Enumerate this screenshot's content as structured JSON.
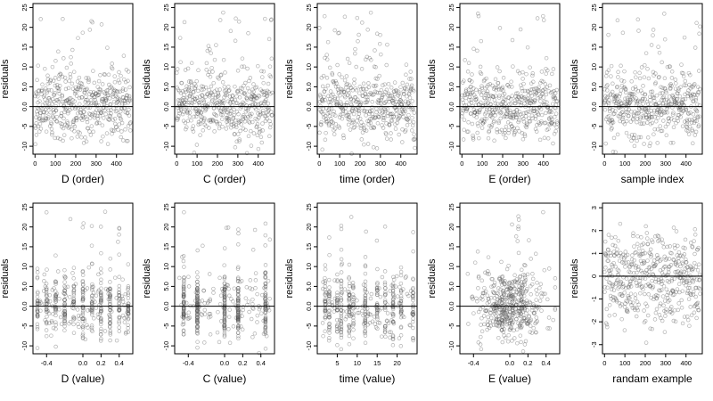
{
  "figure": {
    "rows": 2,
    "cols": 5
  },
  "chart_data": [
    {
      "type": "scatter",
      "xlabel": "D (order)",
      "ylabel": "residuals",
      "xlim": [
        -10,
        480
      ],
      "ylim": [
        -12,
        26
      ],
      "xticks": [
        0,
        100,
        200,
        300,
        400
      ],
      "xtick_labels": [
        "0",
        "100",
        "200",
        "300",
        "400"
      ],
      "yticks": [
        -10,
        -5,
        0,
        5,
        10,
        15,
        20,
        25
      ],
      "ytick_labels": [
        "-10",
        "-5",
        "0.0",
        "5.0",
        "10",
        "15",
        "20",
        "25"
      ],
      "hline": 0,
      "gen": {
        "kind": "order",
        "n": 470,
        "sd": 4.3,
        "seed": 11
      }
    },
    {
      "type": "scatter",
      "xlabel": "C (order)",
      "ylabel": "residuals",
      "xlim": [
        -10,
        480
      ],
      "ylim": [
        -12,
        26
      ],
      "xticks": [
        0,
        100,
        200,
        300,
        400
      ],
      "xtick_labels": [
        "0",
        "100",
        "200",
        "300",
        "400"
      ],
      "yticks": [
        -10,
        -5,
        0,
        5,
        10,
        15,
        20,
        25
      ],
      "ytick_labels": [
        "-10",
        "-5",
        "0.0",
        "5.0",
        "10",
        "15",
        "20",
        "25"
      ],
      "hline": 0,
      "gen": {
        "kind": "order",
        "n": 470,
        "sd": 4.3,
        "seed": 23
      }
    },
    {
      "type": "scatter",
      "xlabel": "time (order)",
      "ylabel": "residuals",
      "xlim": [
        -10,
        480
      ],
      "ylim": [
        -12,
        26
      ],
      "xticks": [
        0,
        100,
        200,
        300,
        400
      ],
      "xtick_labels": [
        "0",
        "100",
        "200",
        "300",
        "400"
      ],
      "yticks": [
        -10,
        -5,
        0,
        5,
        10,
        15,
        20,
        25
      ],
      "ytick_labels": [
        "-10",
        "-5",
        "0.0",
        "5.0",
        "10",
        "15",
        "20",
        "25"
      ],
      "hline": 0,
      "gen": {
        "kind": "order",
        "n": 470,
        "sd": 4.3,
        "seed": 37
      }
    },
    {
      "type": "scatter",
      "xlabel": "E (order)",
      "ylabel": "residuals",
      "xlim": [
        -10,
        480
      ],
      "ylim": [
        -12,
        26
      ],
      "xticks": [
        0,
        100,
        200,
        300,
        400
      ],
      "xtick_labels": [
        "0",
        "100",
        "200",
        "300",
        "400"
      ],
      "yticks": [
        -10,
        -5,
        0,
        5,
        10,
        15,
        20,
        25
      ],
      "ytick_labels": [
        "-10",
        "-5",
        "0.0",
        "5.0",
        "10",
        "15",
        "20",
        "25"
      ],
      "hline": 0,
      "gen": {
        "kind": "order",
        "n": 470,
        "sd": 4.3,
        "seed": 41
      }
    },
    {
      "type": "scatter",
      "xlabel": "sample index",
      "ylabel": "residuals",
      "xlim": [
        -10,
        480
      ],
      "ylim": [
        -12,
        26
      ],
      "xticks": [
        0,
        100,
        200,
        300,
        400
      ],
      "xtick_labels": [
        "0",
        "100",
        "200",
        "300",
        "400"
      ],
      "yticks": [
        -10,
        -5,
        0,
        5,
        10,
        15,
        20,
        25
      ],
      "ytick_labels": [
        "-10",
        "-5",
        "0.0",
        "5.0",
        "10",
        "15",
        "20",
        "25"
      ],
      "hline": 0,
      "gen": {
        "kind": "order",
        "n": 470,
        "sd": 4.3,
        "seed": 53
      }
    },
    {
      "type": "scatter",
      "xlabel": "D (value)",
      "ylabel": "residuals",
      "xlim": [
        -0.55,
        0.55
      ],
      "ylim": [
        -12,
        26
      ],
      "xticks": [
        -0.4,
        0.0,
        0.2,
        0.4
      ],
      "xtick_labels": [
        "-0.4",
        "0.0",
        "0.2",
        "0.4"
      ],
      "yticks": [
        -10,
        -5,
        0,
        5,
        10,
        15,
        20,
        25
      ],
      "ytick_labels": [
        "-10",
        "-5",
        "0.0",
        "5.0",
        "10",
        "15",
        "20",
        "25"
      ],
      "hline": 0,
      "gen": {
        "kind": "value",
        "n": 470,
        "sd": 4.3,
        "seed": 61,
        "xmin": -0.5,
        "xmax": 0.5,
        "levels": [
          -0.5,
          -0.4,
          -0.3,
          -0.2,
          -0.1,
          0.0,
          0.1,
          0.2,
          0.3,
          0.4,
          0.5
        ]
      }
    },
    {
      "type": "scatter",
      "xlabel": "C (value)",
      "ylabel": "residuals",
      "xlim": [
        -0.55,
        0.55
      ],
      "ylim": [
        -12,
        26
      ],
      "xticks": [
        -0.4,
        0.0,
        0.2,
        0.4
      ],
      "xtick_labels": [
        "-0.4",
        "0.0",
        "0.2",
        "0.4"
      ],
      "yticks": [
        -10,
        -5,
        0,
        5,
        10,
        15,
        20,
        25
      ],
      "ytick_labels": [
        "-10",
        "-5",
        "0.0",
        "5.0",
        "10",
        "15",
        "20",
        "25"
      ],
      "hline": 0,
      "gen": {
        "kind": "value",
        "n": 470,
        "sd": 4.3,
        "seed": 71,
        "xmin": -0.5,
        "xmax": 0.5,
        "levels": [
          -0.45,
          -0.3,
          0.0,
          0.15,
          0.45
        ]
      }
    },
    {
      "type": "scatter",
      "xlabel": "time (value)",
      "ylabel": "residuals",
      "xlim": [
        0,
        25
      ],
      "ylim": [
        -12,
        26
      ],
      "xticks": [
        5,
        10,
        15,
        20
      ],
      "xtick_labels": [
        "5",
        "10",
        "15",
        "20"
      ],
      "yticks": [
        -10,
        -5,
        0,
        5,
        10,
        15,
        20,
        25
      ],
      "ytick_labels": [
        "-10",
        "-5",
        "0.0",
        "5.0",
        "10",
        "15",
        "20",
        "25"
      ],
      "hline": 0,
      "gen": {
        "kind": "value",
        "n": 470,
        "sd": 4.3,
        "seed": 83,
        "xmin": 1,
        "xmax": 24,
        "levels": [
          2,
          3,
          5,
          6,
          8,
          9,
          12,
          15,
          17,
          19,
          21,
          24
        ]
      }
    },
    {
      "type": "scatter",
      "xlabel": "E (value)",
      "ylabel": "residuals",
      "xlim": [
        -0.55,
        0.55
      ],
      "ylim": [
        -12,
        26
      ],
      "xticks": [
        -0.4,
        0.0,
        0.2,
        0.4
      ],
      "xtick_labels": [
        "-0.4",
        "0.0",
        "0.2",
        "0.4"
      ],
      "yticks": [
        -10,
        -5,
        0,
        5,
        10,
        15,
        20,
        25
      ],
      "ytick_labels": [
        "-10",
        "-5",
        "0.0",
        "5.0",
        "10",
        "15",
        "20",
        "25"
      ],
      "hline": 0,
      "gen": {
        "kind": "center",
        "n": 470,
        "sd": 4.3,
        "seed": 97,
        "xmin": -0.5,
        "xmax": 0.5
      }
    },
    {
      "type": "scatter",
      "xlabel": "randam example",
      "ylabel": "residuals",
      "xlim": [
        -10,
        480
      ],
      "ylim": [
        -3.4,
        3.2
      ],
      "xticks": [
        0,
        100,
        200,
        300,
        400
      ],
      "xtick_labels": [
        "0",
        "100",
        "200",
        "300",
        "400"
      ],
      "yticks": [
        -3,
        -2,
        -1,
        0,
        1,
        2,
        3
      ],
      "ytick_labels": [
        "-3",
        "-2",
        "-1",
        "0",
        "1",
        "2",
        "3"
      ],
      "hline": 0,
      "gen": {
        "kind": "order",
        "n": 470,
        "sd": 1.0,
        "seed": 101
      }
    }
  ]
}
